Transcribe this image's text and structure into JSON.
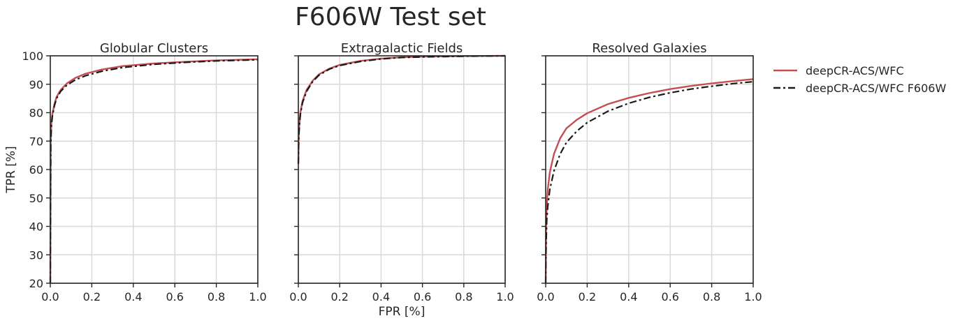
{
  "chart_data": {
    "type": "line",
    "title": "F606W Test set",
    "xlabel": "FPR [%]",
    "ylabel": "TPR [%]",
    "xlim": [
      0.0,
      1.0
    ],
    "ylim": [
      20,
      100
    ],
    "xticks": [
      "0.0",
      "0.2",
      "0.4",
      "0.6",
      "0.8",
      "1.0"
    ],
    "yticks": [
      "20",
      "30",
      "40",
      "50",
      "60",
      "70",
      "80",
      "90",
      "100"
    ],
    "grid": true,
    "legend": {
      "placement": "upper-right-outside",
      "entries": [
        "deepCR-ACS/WFC",
        "deepCR-ACS/WFC F606W"
      ]
    },
    "colors": {
      "red": "#c44e52",
      "black": "#1a1a1a",
      "grid": "#d9d9d9",
      "axis": "#262626"
    },
    "panels": [
      {
        "title": "Globular Clusters",
        "series": [
          {
            "name": "deepCR-ACS/WFC",
            "style": "solid",
            "color": "#c44e52",
            "x": [
              0,
              0.002,
              0.005,
              0.01,
              0.02,
              0.03,
              0.05,
              0.08,
              0.12,
              0.17,
              0.25,
              0.35,
              0.5,
              0.65,
              0.8,
              1.0
            ],
            "y": [
              20,
              70,
              76,
              79.5,
              83,
              85.5,
              88,
              90.3,
              92.2,
              93.7,
              95.2,
              96.4,
              97.3,
              97.9,
              98.4,
              98.8
            ]
          },
          {
            "name": "deepCR-ACS/WFC F606W",
            "style": "dashdot",
            "color": "#1a1a1a",
            "x": [
              0,
              0.002,
              0.005,
              0.01,
              0.02,
              0.03,
              0.05,
              0.08,
              0.12,
              0.17,
              0.25,
              0.35,
              0.5,
              0.65,
              0.8,
              1.0
            ],
            "y": [
              20,
              68,
              75,
              78.8,
              82.5,
              85,
              87.5,
              89.7,
              91.5,
              93,
              94.6,
              95.9,
              97,
              97.7,
              98.2,
              98.6
            ]
          }
        ]
      },
      {
        "title": "Extragalactic Fields",
        "series": [
          {
            "name": "deepCR-ACS/WFC",
            "style": "solid",
            "color": "#c44e52",
            "x": [
              0,
              0.002,
              0.005,
              0.01,
              0.02,
              0.04,
              0.07,
              0.1,
              0.15,
              0.2,
              0.3,
              0.4,
              0.5,
              0.6,
              0.8,
              1.0
            ],
            "y": [
              62,
              72,
              76,
              80,
              84,
              88,
              91.3,
              93.5,
              95.5,
              96.8,
              98.2,
              99,
              99.5,
              99.7,
              99.9,
              100
            ]
          },
          {
            "name": "deepCR-ACS/WFC F606W",
            "style": "dashdot",
            "color": "#1a1a1a",
            "x": [
              0,
              0.002,
              0.005,
              0.01,
              0.02,
              0.04,
              0.07,
              0.1,
              0.15,
              0.2,
              0.3,
              0.4,
              0.5,
              0.6,
              0.8,
              1.0
            ],
            "y": [
              62,
              71,
              75.5,
              79.5,
              83.5,
              87.5,
              91,
              93.2,
              95.3,
              96.6,
              98,
              98.9,
              99.4,
              99.6,
              99.85,
              100
            ]
          }
        ]
      },
      {
        "title": "Resolved Galaxies",
        "series": [
          {
            "name": "deepCR-ACS/WFC",
            "style": "solid",
            "color": "#c44e52",
            "x": [
              0,
              0.002,
              0.005,
              0.01,
              0.02,
              0.04,
              0.07,
              0.1,
              0.15,
              0.2,
              0.3,
              0.4,
              0.5,
              0.6,
              0.7,
              0.8,
              0.9,
              1.0
            ],
            "y": [
              20,
              40,
              47,
              53,
              59,
              65.5,
              71,
              74.5,
              77.5,
              79.8,
              83,
              85.2,
              86.9,
              88.3,
              89.4,
              90.3,
              91.1,
              91.8
            ]
          },
          {
            "name": "deepCR-ACS/WFC F606W",
            "style": "dashdot",
            "color": "#1a1a1a",
            "x": [
              0,
              0.002,
              0.005,
              0.01,
              0.02,
              0.04,
              0.07,
              0.1,
              0.15,
              0.2,
              0.3,
              0.4,
              0.5,
              0.6,
              0.7,
              0.8,
              0.9,
              1.0
            ],
            "y": [
              20,
              33,
              42,
              47,
              53,
              59.5,
              65.5,
              69.5,
              73.5,
              76.5,
              80.5,
              83.3,
              85.4,
              87,
              88.3,
              89.3,
              90.2,
              90.9
            ]
          }
        ]
      }
    ]
  }
}
